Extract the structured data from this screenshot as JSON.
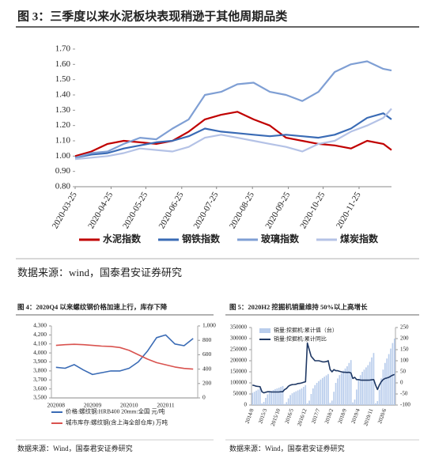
{
  "chart_data": [
    {
      "type": "line",
      "title": "图 3：三季度以来水泥板块表现稍逊于其他周期品类",
      "x": [
        "2020-03-25",
        "2020-04-08",
        "2020-04-22",
        "2020-05-06",
        "2020-05-20",
        "2020-06-03",
        "2020-06-17",
        "2020-07-01",
        "2020-07-15",
        "2020-07-29",
        "2020-08-12",
        "2020-08-26",
        "2020-09-09",
        "2020-09-23",
        "2020-10-07",
        "2020-10-21",
        "2020-11-04",
        "2020-11-18",
        "2020-12-02",
        "2020-12-16",
        "2020-12-23"
      ],
      "xlim": [
        "2020-03-25",
        "2020-12-23"
      ],
      "xticks": [
        "2020-03-25",
        "2020-04-25",
        "2020-05-25",
        "2020-06-25",
        "2020-07-25",
        "2020-08-25",
        "2020-09-25",
        "2020-10-25",
        "2020-11-25"
      ],
      "ylim": [
        0.8,
        1.7
      ],
      "yticks": [
        {
          "value": 0.8,
          "label": "0.80"
        },
        {
          "value": 0.9,
          "label": "0.90"
        },
        {
          "value": 1,
          "label": "1.00"
        },
        {
          "value": 1.1,
          "label": "1.10"
        },
        {
          "value": 1.2,
          "label": "1.20"
        },
        {
          "value": 1.3,
          "label": "1.30"
        },
        {
          "value": 1.4,
          "label": "1.40"
        },
        {
          "value": 1.5,
          "label": "1.50"
        },
        {
          "value": 1.6,
          "label": "1.60"
        },
        {
          "value": 1.7,
          "label": "1.70"
        }
      ],
      "legend": "bottom",
      "series": [
        {
          "name": "水泥指数",
          "color": "#c00000",
          "values": [
            1.0,
            1.03,
            1.08,
            1.1,
            1.09,
            1.08,
            1.1,
            1.16,
            1.24,
            1.27,
            1.29,
            1.24,
            1.2,
            1.12,
            1.1,
            1.08,
            1.07,
            1.05,
            1.1,
            1.08,
            1.04
          ]
        },
        {
          "name": "钢铁指数",
          "color": "#3a6bb5",
          "values": [
            0.99,
            1.01,
            1.02,
            1.05,
            1.07,
            1.09,
            1.1,
            1.13,
            1.18,
            1.16,
            1.15,
            1.14,
            1.13,
            1.14,
            1.13,
            1.12,
            1.14,
            1.18,
            1.25,
            1.28,
            1.24
          ]
        },
        {
          "name": "玻璃指数",
          "color": "#7f9fd4",
          "values": [
            0.99,
            1.02,
            1.03,
            1.08,
            1.12,
            1.11,
            1.18,
            1.24,
            1.4,
            1.42,
            1.47,
            1.48,
            1.42,
            1.4,
            1.36,
            1.42,
            1.55,
            1.6,
            1.62,
            1.57,
            1.56
          ]
        },
        {
          "name": "煤炭指数",
          "color": "#b4c2e6",
          "values": [
            0.98,
            0.99,
            1.0,
            1.02,
            1.05,
            1.04,
            1.03,
            1.06,
            1.12,
            1.14,
            1.12,
            1.1,
            1.08,
            1.06,
            1.03,
            1.08,
            1.1,
            1.16,
            1.2,
            1.25,
            1.31
          ]
        }
      ]
    },
    {
      "type": "line",
      "title": "图 4：2020Q4 以来螺纹钢价格加速上行，库存下降",
      "categories": [
        "202008",
        null,
        null,
        null,
        "202009",
        null,
        null,
        null,
        "202010",
        null,
        null,
        null,
        "202011",
        null,
        null,
        null
      ],
      "ylim": [
        3500,
        4300
      ],
      "yticks": [
        {
          "value": 3500,
          "label": "3,500"
        },
        {
          "value": 3600,
          "label": "3,600"
        },
        {
          "value": 3700,
          "label": "3,700"
        },
        {
          "value": 3800,
          "label": "3,800"
        },
        {
          "value": 3900,
          "label": "3,900"
        },
        {
          "value": 4000,
          "label": "4,000"
        },
        {
          "value": 4100,
          "label": "4,100"
        },
        {
          "value": 4200,
          "label": "4,200"
        },
        {
          "value": 4300,
          "label": "4,300"
        }
      ],
      "y2lim": [
        0,
        1000
      ],
      "y2ticks": [
        0,
        200,
        400,
        600,
        800,
        {
          "value": 1000,
          "label": "1,000"
        }
      ],
      "legend": "bottom",
      "series": [
        {
          "name": "价格:螺纹钢:HRB400 20mm:全国 元/吨",
          "color": "#3a6bb5",
          "values": [
            3840,
            3830,
            3870,
            3810,
            3760,
            3780,
            3800,
            3800,
            3830,
            3900,
            4020,
            4170,
            4200,
            4100,
            4080,
            4160
          ]
        },
        {
          "name": "城市库存:螺纹钢(含上海全部仓库) 万吨",
          "color": "#d9534f",
          "axis": "y2",
          "values": [
            730,
            740,
            745,
            740,
            730,
            720,
            715,
            700,
            660,
            600,
            540,
            490,
            460,
            430,
            410,
            400
          ]
        }
      ]
    },
    {
      "type": "bar",
      "title": "图 5：2020H2 挖掘机销量维持 50%以上高增长",
      "categories": [
        "2014/8",
        null,
        null,
        null,
        null,
        null,
        null,
        "2015/3",
        null,
        null,
        null,
        null,
        null,
        null,
        "2015/10",
        null,
        null,
        null,
        null,
        null,
        null,
        "2016/5",
        null,
        null,
        null,
        null,
        null,
        null,
        "2016/12",
        null,
        null,
        null,
        null,
        null,
        null,
        "2017/7",
        null,
        null,
        null,
        null,
        null,
        null,
        "2018/2",
        null,
        null,
        null,
        null,
        null,
        null,
        "2018/9",
        null,
        null,
        null,
        null,
        null,
        null,
        "2019/4",
        null,
        null,
        null,
        null,
        null,
        null,
        "2019/11",
        null,
        null,
        null,
        null,
        null,
        null,
        "2020/6",
        null,
        null,
        null,
        null,
        null
      ],
      "ylim": [
        0,
        350000
      ],
      "yticks": [
        0,
        50000,
        100000,
        150000,
        200000,
        250000,
        300000,
        350000
      ],
      "y2lim": [
        -100,
        250
      ],
      "y2ticks": [
        -100,
        -50,
        0,
        50,
        100,
        150,
        200,
        250
      ],
      "legend": "upper left",
      "series": [
        {
          "name": "销量:挖掘机:累计值（台）",
          "type": "bar",
          "color": "#b9cdec",
          "values": [
            55000,
            60000,
            65000,
            70000,
            75000,
            7000,
            14000,
            32000,
            48000,
            58000,
            64000,
            68000,
            72000,
            75000,
            78000,
            82000,
            86000,
            5000,
            13000,
            30000,
            45000,
            53000,
            58000,
            62000,
            66000,
            70000,
            75000,
            82000,
            90000,
            8000,
            20000,
            50000,
            75000,
            90000,
            100000,
            108000,
            115000,
            122000,
            128000,
            134000,
            140000,
            10000,
            20000,
            60000,
            100000,
            120000,
            135000,
            145000,
            155000,
            165000,
            175000,
            190000,
            203000,
            12000,
            25000,
            70000,
            115000,
            135000,
            150000,
            160000,
            170000,
            180000,
            195000,
            215000,
            235000,
            8000,
            18000,
            68000,
            120000,
            160000,
            190000,
            210000,
            230000,
            255000,
            280000,
            300000
          ]
        },
        {
          "name": "销量:挖掘机:累计同比",
          "type": "line",
          "color": "#1f3864",
          "axis": "y2",
          "values": [
            -10,
            -12,
            -15,
            -16,
            -17,
            -40,
            -45,
            -42,
            -40,
            -40,
            -41,
            -41,
            -41,
            -41,
            -41,
            -40,
            -40,
            -30,
            -25,
            -15,
            -10,
            -8,
            -7,
            -6,
            -3,
            -2,
            0,
            3,
            5,
            180,
            150,
            120,
            110,
            100,
            100,
            100,
            98,
            95,
            95,
            96,
            100,
            60,
            50,
            60,
            55,
            55,
            52,
            50,
            48,
            48,
            47,
            48,
            45,
            20,
            25,
            15,
            15,
            13,
            12,
            12,
            12,
            12,
            13,
            14,
            15,
            -10,
            -30,
            -10,
            5,
            15,
            20,
            22,
            25,
            30,
            35,
            38
          ]
        }
      ]
    }
  ],
  "sources": [
    "数据来源：wind，国泰君安证券研究",
    "数据来源：Wind，国泰君安证券研究",
    "数据来源：Wind，国泰君安证券研究"
  ]
}
